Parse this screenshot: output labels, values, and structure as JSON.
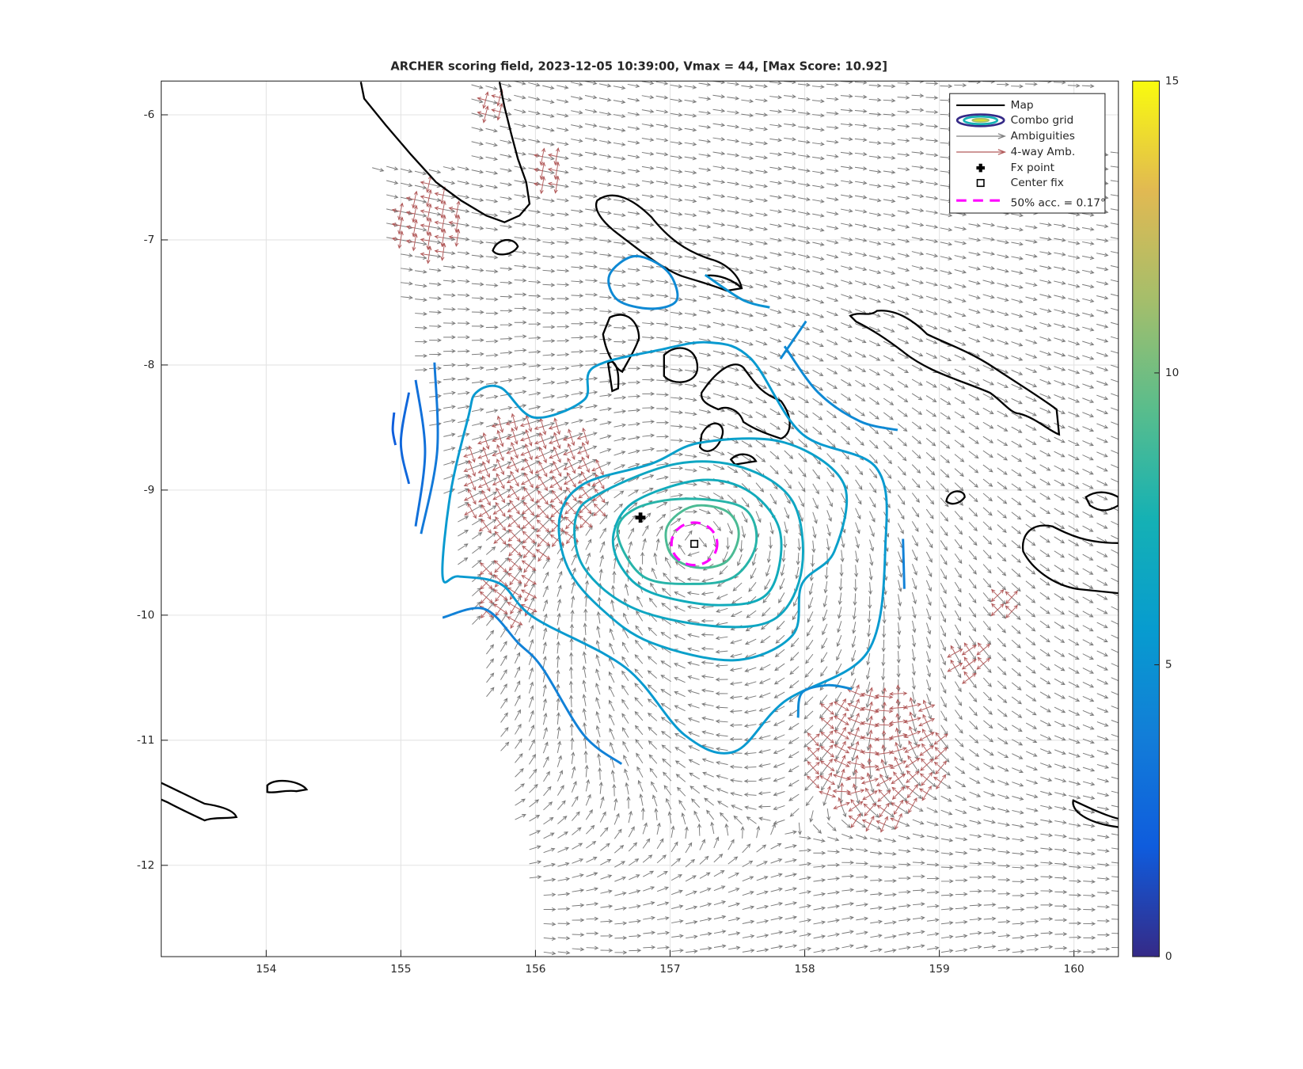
{
  "chart_data": {
    "type": "map",
    "title": "ARCHER scoring field, 2023-12-05 10:39:00, Vmax = 44, [Max Score: 10.92]",
    "xlim": [
      153.22,
      160.33
    ],
    "ylim": [
      -12.73,
      -5.73
    ],
    "xticks": [
      154,
      155,
      156,
      157,
      158,
      159,
      160
    ],
    "yticks": [
      -12,
      -11,
      -10,
      -9,
      -8,
      -7,
      -6
    ],
    "grid": true,
    "legend": [
      "Map",
      "Combo grid",
      "Ambiguities",
      "4-way Amb.",
      "Fx point",
      "Center fix",
      "50% acc. = 0.17°"
    ],
    "legend_position": "northeast",
    "fx_point": {
      "lon": 156.78,
      "lat": -9.22
    },
    "center_fix": {
      "lon": 157.18,
      "lat": -9.43
    },
    "acc_radius": 0.17,
    "colorbar": {
      "clim": [
        0,
        15
      ],
      "ticks": [
        0,
        5,
        10,
        15
      ]
    },
    "contours": [
      {
        "level": 9,
        "closed": true,
        "lon": [
          156.98,
          157.17,
          157.42,
          157.51,
          157.42,
          157.2,
          157.01
        ],
        "lat": [
          -9.29,
          -9.13,
          -9.17,
          -9.35,
          -9.57,
          -9.62,
          -9.52
        ]
      },
      {
        "level": 8,
        "closed": true,
        "lon": [
          156.61,
          156.74,
          157.11,
          157.54,
          157.64,
          157.48,
          157.17,
          156.8
        ],
        "lat": [
          -9.35,
          -9.15,
          -9.07,
          -9.14,
          -9.42,
          -9.69,
          -9.75,
          -9.69
        ]
      },
      {
        "level": 7,
        "closed": true,
        "lon": [
          156.58,
          156.74,
          157.23,
          157.6,
          157.82,
          157.73,
          157.36,
          156.86,
          156.64
        ],
        "lat": [
          -9.35,
          -9.09,
          -8.92,
          -9.02,
          -9.35,
          -9.82,
          -9.92,
          -9.82,
          -9.62
        ]
      },
      {
        "level": 6.5,
        "closed": true,
        "lon": [
          156.3,
          156.49,
          157.05,
          157.54,
          157.91,
          157.98,
          157.79,
          157.36,
          156.74,
          156.36
        ],
        "lat": [
          -9.22,
          -9.02,
          -8.79,
          -8.82,
          -9.09,
          -9.62,
          -10.02,
          -10.09,
          -9.95,
          -9.62
        ]
      },
      {
        "level": 6,
        "closed": true,
        "lon": [
          156.18,
          156.36,
          156.86,
          157.23,
          157.85,
          158.29,
          158.22,
          157.98,
          157.91,
          157.48,
          156.86,
          156.49,
          156.24
        ],
        "lat": [
          -9.22,
          -8.95,
          -8.79,
          -8.62,
          -8.62,
          -8.95,
          -9.49,
          -9.75,
          -10.16,
          -10.36,
          -10.22,
          -9.95,
          -9.62
        ]
      },
      {
        "level": 5.5,
        "closed": true,
        "lon": [
          155.31,
          155.37,
          155.5,
          155.56,
          155.74,
          155.99,
          156.36,
          156.43,
          156.92,
          157.29,
          157.6,
          157.98,
          158.53,
          158.6,
          158.47,
          157.85,
          157.48,
          157.11,
          156.67,
          155.99,
          155.74,
          155.43
        ],
        "lat": [
          -9.69,
          -9.02,
          -8.42,
          -8.22,
          -8.18,
          -8.42,
          -8.28,
          -8.02,
          -7.88,
          -7.82,
          -7.95,
          -8.55,
          -8.82,
          -9.42,
          -10.29,
          -10.69,
          -11.09,
          -10.96,
          -10.42,
          -10.02,
          -9.75,
          -9.69
        ]
      },
      {
        "level": 4.5,
        "closed": true,
        "lon": [
          156.55,
          156.74,
          156.98,
          157.05,
          156.86,
          156.61
        ],
        "lat": [
          -7.28,
          -7.13,
          -7.25,
          -7.48,
          -7.55,
          -7.48
        ]
      },
      {
        "level": 2,
        "closed": false,
        "lon": [
          154.95,
          154.94,
          154.96
        ],
        "lat": [
          -8.38,
          -8.52,
          -8.64
        ]
      },
      {
        "level": 2.5,
        "closed": false,
        "lon": [
          155.06,
          155.0,
          155.06
        ],
        "lat": [
          -8.22,
          -8.62,
          -8.95
        ]
      },
      {
        "level": 3,
        "closed": false,
        "lon": [
          155.11,
          155.18,
          155.11
        ],
        "lat": [
          -8.12,
          -8.69,
          -9.29
        ]
      },
      {
        "level": 3.5,
        "closed": false,
        "lon": [
          155.25,
          155.27,
          155.15
        ],
        "lat": [
          -7.98,
          -8.69,
          -9.35
        ]
      },
      {
        "level": 4,
        "closed": false,
        "lon": [
          155.31,
          155.62,
          155.87,
          156.05,
          156.36,
          156.64
        ],
        "lat": [
          -10.02,
          -9.95,
          -10.22,
          -10.42,
          -10.96,
          -11.19
        ]
      },
      {
        "level": 4.5,
        "closed": false,
        "lon": [
          157.82,
          158.01
        ],
        "lat": [
          -7.95,
          -7.65
        ]
      },
      {
        "level": 4.5,
        "closed": false,
        "lon": [
          157.85,
          158.1,
          158.41,
          158.69
        ],
        "lat": [
          -7.85,
          -8.22,
          -8.45,
          -8.52
        ]
      },
      {
        "level": 4,
        "closed": false,
        "lon": [
          158.73,
          158.74
        ],
        "lat": [
          -9.39,
          -9.79
        ]
      },
      {
        "level": 4.5,
        "closed": false,
        "lon": [
          157.95,
          157.98,
          158.17,
          158.35
        ],
        "lat": [
          -10.82,
          -10.62,
          -10.56,
          -10.59
        ]
      },
      {
        "level": 5,
        "closed": false,
        "lon": [
          157.26,
          157.54,
          157.74
        ],
        "lat": [
          -7.28,
          -7.48,
          -7.54
        ]
      }
    ]
  }
}
